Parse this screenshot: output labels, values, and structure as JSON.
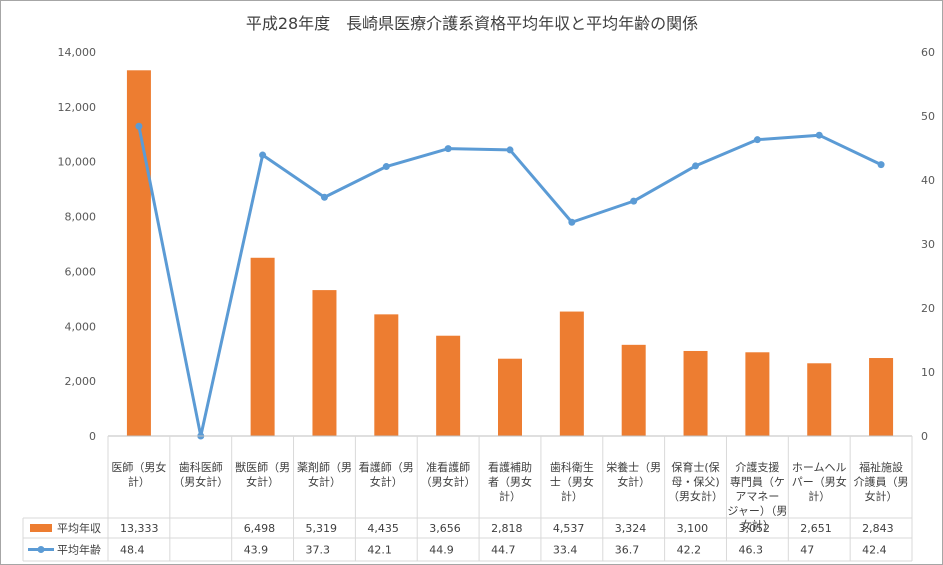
{
  "chart_data": {
    "type": "bar+line",
    "title": "平成28年度　長崎県医療介護系資格平均年収と平均年齢の関係",
    "categories": [
      [
        "医師（男女",
        "計）"
      ],
      [
        "歯科医師",
        "（男女計）"
      ],
      [
        "獣医師（男",
        "女計）"
      ],
      [
        "薬剤師（男",
        "女計）"
      ],
      [
        "看護師（男",
        "女計）"
      ],
      [
        "准看護師",
        "（男女計）"
      ],
      [
        "看護補助",
        "者（男女",
        "計）"
      ],
      [
        "歯科衛生",
        "士（男女",
        "計）"
      ],
      [
        "栄養士（男",
        "女計）"
      ],
      [
        "保育士(保",
        "母・保父)",
        "（男女計）"
      ],
      [
        "介護支援",
        "専門員（ケ",
        "アマネー",
        "ジャー）（男",
        "女計）"
      ],
      [
        "ホームヘル",
        "パー（男女",
        "計）"
      ],
      [
        "福祉施設",
        "介護員（男",
        "女計）"
      ]
    ],
    "series": [
      {
        "name": "平均年収",
        "type": "bar",
        "axis": "left",
        "color": "#ed7d31",
        "values": [
          13333,
          null,
          6498,
          5319,
          4435,
          3656,
          2818,
          4537,
          3324,
          3100,
          3052,
          2651,
          2843
        ],
        "labels": [
          "13,333",
          "",
          "6,498",
          "5,319",
          "4,435",
          "3,656",
          "2,818",
          "4,537",
          "3,324",
          "3,100",
          "3,052",
          "2,651",
          "2,843"
        ]
      },
      {
        "name": "平均年齢",
        "type": "line",
        "axis": "right",
        "color": "#5b9bd5",
        "values": [
          48.4,
          0,
          43.9,
          37.3,
          42.1,
          44.9,
          44.7,
          33.4,
          36.7,
          42.2,
          46.3,
          47,
          42.4
        ],
        "labels": [
          "48.4",
          "",
          "43.9",
          "37.3",
          "42.1",
          "44.9",
          "44.7",
          "33.4",
          "36.7",
          "42.2",
          "46.3",
          "47",
          "42.4"
        ]
      }
    ],
    "y_left": {
      "min": 0,
      "max": 14000,
      "ticks": [
        "0",
        "2,000",
        "4,000",
        "6,000",
        "8,000",
        "10,000",
        "12,000",
        "14,000"
      ]
    },
    "y_right": {
      "min": 0,
      "max": 60,
      "ticks": [
        "0",
        "10",
        "20",
        "30",
        "40",
        "50",
        "60"
      ]
    },
    "grid": false,
    "legend": "data-table"
  }
}
